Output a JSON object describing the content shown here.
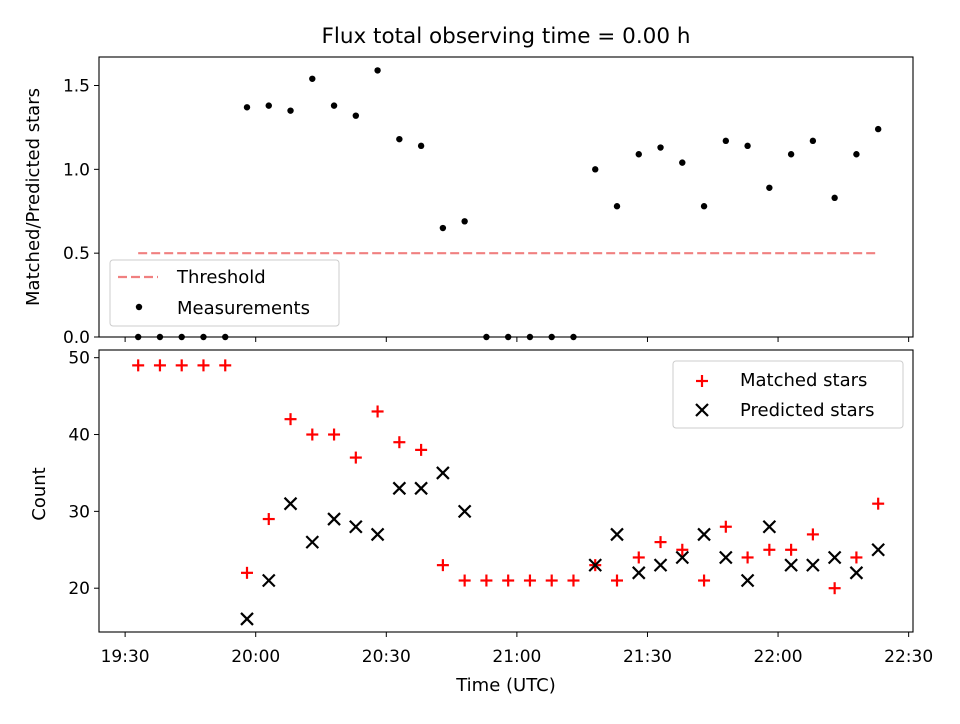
{
  "figure": {
    "title": "Flux total observing time = 0.00 h",
    "xlabel": "Time (UTC)"
  },
  "chart_data": [
    {
      "type": "scatter",
      "ylabel": "Matched/Predicted stars",
      "ylim": [
        0,
        1.67
      ],
      "yticks": [
        0.0,
        0.5,
        1.0,
        1.5
      ],
      "ytick_labels": [
        "0.0",
        "0.5",
        "1.0",
        "1.5"
      ],
      "legend_position": "lower-left",
      "threshold": {
        "name": "Threshold",
        "value": 0.5,
        "x_range": [
          "19:33",
          "22:23"
        ],
        "color": "#f08080"
      },
      "series": [
        {
          "name": "Measurements",
          "color": "#000000",
          "points": [
            [
              "19:33",
              0.0
            ],
            [
              "19:38",
              0.0
            ],
            [
              "19:43",
              0.0
            ],
            [
              "19:48",
              0.0
            ],
            [
              "19:53",
              0.0
            ],
            [
              "19:58",
              1.37
            ],
            [
              "20:03",
              1.38
            ],
            [
              "20:08",
              1.35
            ],
            [
              "20:13",
              1.54
            ],
            [
              "20:18",
              1.38
            ],
            [
              "20:23",
              1.32
            ],
            [
              "20:28",
              1.59
            ],
            [
              "20:33",
              1.18
            ],
            [
              "20:38",
              1.14
            ],
            [
              "20:43",
              0.65
            ],
            [
              "20:48",
              0.69
            ],
            [
              "20:53",
              0.0
            ],
            [
              "20:58",
              0.0
            ],
            [
              "21:03",
              0.0
            ],
            [
              "21:08",
              0.0
            ],
            [
              "21:13",
              0.0
            ],
            [
              "21:18",
              1.0
            ],
            [
              "21:23",
              0.78
            ],
            [
              "21:28",
              1.09
            ],
            [
              "21:33",
              1.13
            ],
            [
              "21:38",
              1.04
            ],
            [
              "21:43",
              0.78
            ],
            [
              "21:48",
              1.17
            ],
            [
              "21:53",
              1.14
            ],
            [
              "21:58",
              0.89
            ],
            [
              "22:03",
              1.09
            ],
            [
              "22:08",
              1.17
            ],
            [
              "22:13",
              0.83
            ],
            [
              "22:18",
              1.09
            ],
            [
              "22:23",
              1.24
            ]
          ]
        }
      ]
    },
    {
      "type": "scatter",
      "ylabel": "Count",
      "ylim": [
        14.3,
        51.0
      ],
      "yticks": [
        20,
        30,
        40,
        50
      ],
      "ytick_labels": [
        "20",
        "30",
        "40",
        "50"
      ],
      "xlim": [
        "19:24",
        "22:31"
      ],
      "xticks": [
        "19:30",
        "20:00",
        "20:30",
        "21:00",
        "21:30",
        "22:00",
        "22:30"
      ],
      "legend_position": "upper-right",
      "series": [
        {
          "name": "Matched stars",
          "marker": "plus",
          "color": "#ff0000",
          "points": [
            [
              "19:33",
              49
            ],
            [
              "19:38",
              49
            ],
            [
              "19:43",
              49
            ],
            [
              "19:48",
              49
            ],
            [
              "19:53",
              49
            ],
            [
              "19:58",
              22
            ],
            [
              "20:03",
              29
            ],
            [
              "20:08",
              42
            ],
            [
              "20:13",
              40
            ],
            [
              "20:18",
              40
            ],
            [
              "20:23",
              37
            ],
            [
              "20:28",
              43
            ],
            [
              "20:33",
              39
            ],
            [
              "20:38",
              38
            ],
            [
              "20:43",
              23
            ],
            [
              "20:48",
              21
            ],
            [
              "20:53",
              21
            ],
            [
              "20:58",
              21
            ],
            [
              "21:03",
              21
            ],
            [
              "21:08",
              21
            ],
            [
              "21:13",
              21
            ],
            [
              "21:18",
              23
            ],
            [
              "21:23",
              21
            ],
            [
              "21:28",
              24
            ],
            [
              "21:33",
              26
            ],
            [
              "21:38",
              25
            ],
            [
              "21:43",
              21
            ],
            [
              "21:48",
              28
            ],
            [
              "21:53",
              24
            ],
            [
              "21:58",
              25
            ],
            [
              "22:03",
              25
            ],
            [
              "22:08",
              27
            ],
            [
              "22:13",
              20
            ],
            [
              "22:18",
              24
            ],
            [
              "22:23",
              31
            ]
          ]
        },
        {
          "name": "Predicted stars",
          "marker": "x",
          "color": "#000000",
          "points": [
            [
              "19:58",
              16
            ],
            [
              "20:03",
              21
            ],
            [
              "20:08",
              31
            ],
            [
              "20:13",
              26
            ],
            [
              "20:18",
              29
            ],
            [
              "20:23",
              28
            ],
            [
              "20:28",
              27
            ],
            [
              "20:33",
              33
            ],
            [
              "20:38",
              33
            ],
            [
              "20:43",
              35
            ],
            [
              "20:48",
              30
            ],
            [
              "21:18",
              23
            ],
            [
              "21:23",
              27
            ],
            [
              "21:28",
              22
            ],
            [
              "21:33",
              23
            ],
            [
              "21:38",
              24
            ],
            [
              "21:43",
              27
            ],
            [
              "21:48",
              24
            ],
            [
              "21:53",
              21
            ],
            [
              "21:58",
              28
            ],
            [
              "22:03",
              23
            ],
            [
              "22:08",
              23
            ],
            [
              "22:13",
              24
            ],
            [
              "22:18",
              22
            ],
            [
              "22:23",
              25
            ]
          ]
        }
      ]
    }
  ]
}
